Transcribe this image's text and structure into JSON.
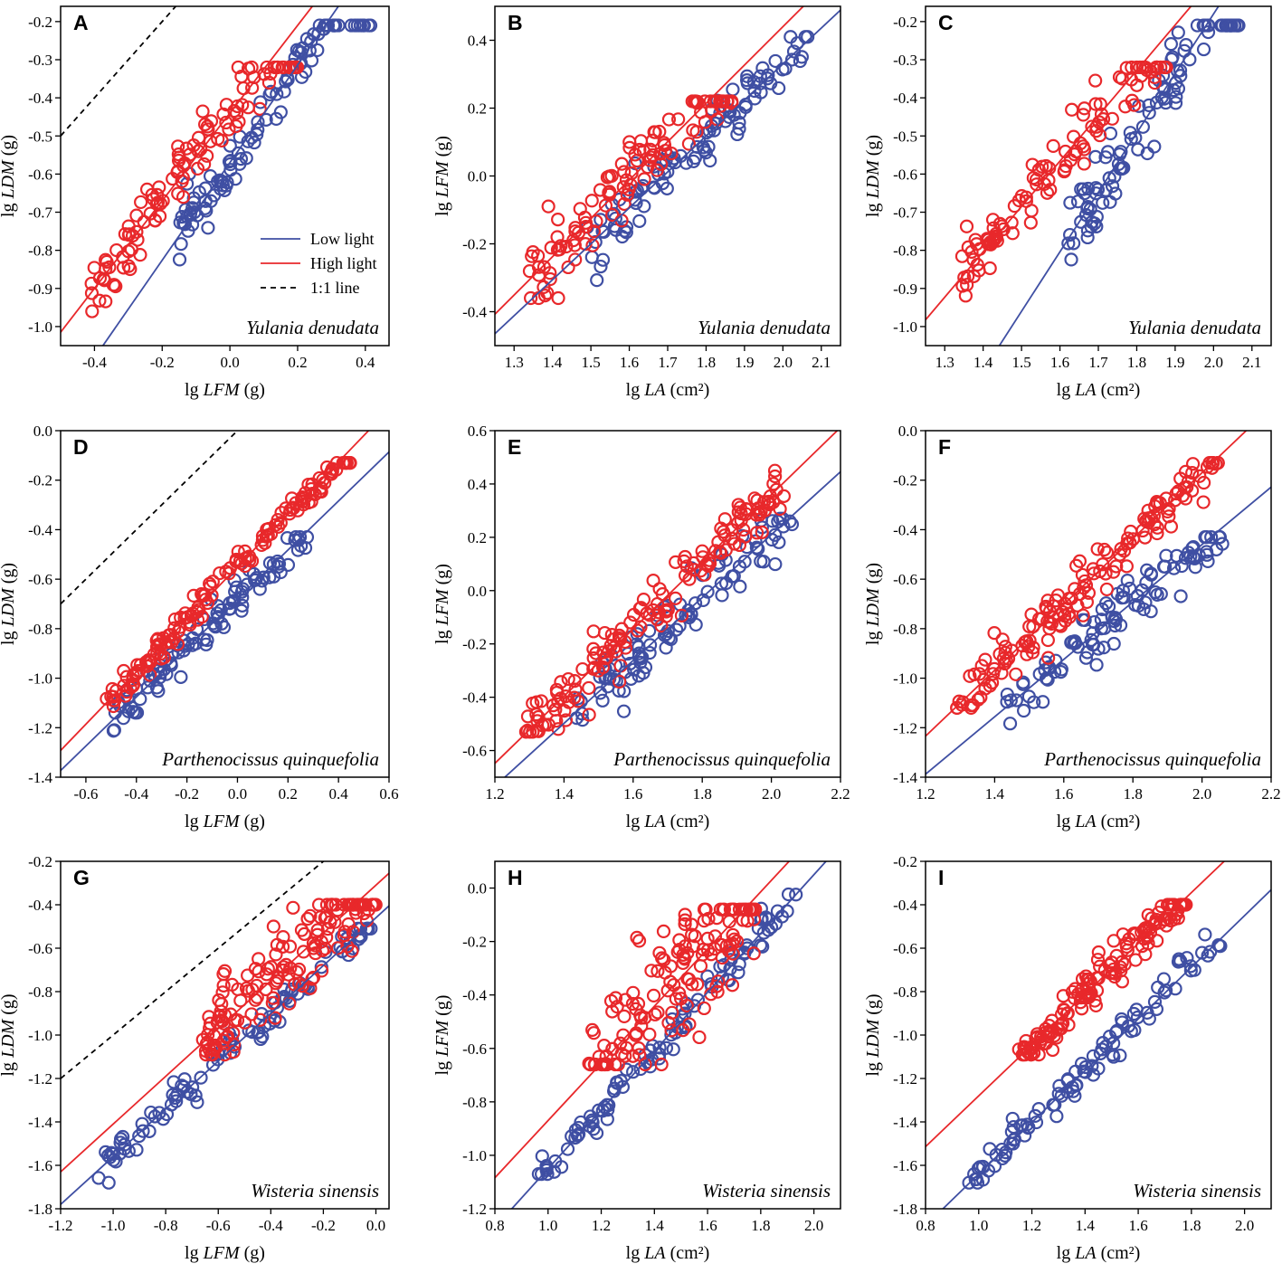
{
  "colors": {
    "low": "#3f4fa3",
    "high": "#e8282b",
    "ref": "#000000",
    "frame": "#000000"
  },
  "legend": {
    "low": "Low light",
    "high": "High light",
    "ref": "1:1 line"
  },
  "chart_data": [
    {
      "id": "A",
      "type": "scatter",
      "species": "Yulania denudata",
      "xlabel_pre": "lg ",
      "xlabel_var": "LFM",
      "xlabel_post": " (g)",
      "ylabel_pre": "lg ",
      "ylabel_var": "LDM",
      "ylabel_post": " (g)",
      "xlim": [
        -0.5,
        0.47
      ],
      "ylim": [
        -1.05,
        -0.16
      ],
      "xticks": [
        -0.4,
        -0.2,
        0.0,
        0.2,
        0.4
      ],
      "yticks": [
        -1.0,
        -0.9,
        -0.8,
        -0.7,
        -0.6,
        -0.5,
        -0.4,
        -0.3,
        -0.2
      ],
      "xdec": 1,
      "ydec": 1,
      "legend_shown": true,
      "ref_line": true,
      "fit": {
        "low": {
          "slope": 1.28,
          "intercept": -0.57
        },
        "high": {
          "slope": 1.15,
          "intercept": -0.44
        }
      },
      "low": {
        "xr": [
          -0.16,
          0.42
        ],
        "yr": [
          -0.86,
          -0.21
        ],
        "n": 100,
        "noise": 0.035,
        "seed": 11
      },
      "high": {
        "xr": [
          -0.41,
          0.2
        ],
        "yr": [
          -0.96,
          -0.32
        ],
        "n": 110,
        "noise": 0.05,
        "seed": 12
      }
    },
    {
      "id": "B",
      "type": "scatter",
      "species": "Yulania denudata",
      "xlabel_pre": "lg ",
      "xlabel_var": "LA",
      "xlabel_post": " (cm²)",
      "ylabel_pre": "lg ",
      "ylabel_var": "LFM",
      "ylabel_post": " (g)",
      "xlim": [
        1.25,
        2.15
      ],
      "ylim": [
        -0.5,
        0.5
      ],
      "xticks": [
        1.3,
        1.4,
        1.5,
        1.6,
        1.7,
        1.8,
        1.9,
        2.0,
        2.1
      ],
      "yticks": [
        -0.4,
        -0.2,
        0.0,
        0.2,
        0.4
      ],
      "xdec": 1,
      "ydec": 1,
      "legend_shown": false,
      "ref_line": false,
      "fit": {
        "low": {
          "slope": 1.06,
          "intercept": -1.79
        },
        "high": {
          "slope": 1.13,
          "intercept": -1.82
        }
      },
      "low": {
        "xr": [
          1.49,
          2.07
        ],
        "yr": [
          -0.41,
          0.41
        ],
        "n": 100,
        "noise": 0.04,
        "seed": 21
      },
      "high": {
        "xr": [
          1.34,
          1.88
        ],
        "yr": [
          -0.36,
          0.22
        ],
        "n": 110,
        "noise": 0.05,
        "seed": 22
      }
    },
    {
      "id": "C",
      "type": "scatter",
      "species": "Yulania denudata",
      "xlabel_pre": "lg ",
      "xlabel_var": "LA",
      "xlabel_post": " (cm²)",
      "ylabel_pre": "lg ",
      "ylabel_var": "LDM",
      "ylabel_post": " (g)",
      "xlim": [
        1.25,
        2.15
      ],
      "ylim": [
        -1.05,
        -0.16
      ],
      "xticks": [
        1.3,
        1.4,
        1.5,
        1.6,
        1.7,
        1.8,
        1.9,
        2.0,
        2.1
      ],
      "yticks": [
        -1.0,
        -0.9,
        -0.8,
        -0.7,
        -0.6,
        -0.5,
        -0.4,
        -0.3,
        -0.2
      ],
      "xdec": 1,
      "ydec": 1,
      "legend_shown": false,
      "ref_line": false,
      "fit": {
        "low": {
          "slope": 1.56,
          "intercept": -3.3
        },
        "high": {
          "slope": 1.19,
          "intercept": -2.47
        }
      },
      "low": {
        "xr": [
          1.62,
          2.07
        ],
        "yr": [
          -0.86,
          -0.21
        ],
        "n": 100,
        "noise": 0.05,
        "seed": 31
      },
      "high": {
        "xr": [
          1.34,
          1.88
        ],
        "yr": [
          -0.96,
          -0.32
        ],
        "n": 110,
        "noise": 0.05,
        "seed": 32
      }
    },
    {
      "id": "D",
      "type": "scatter",
      "species": "Parthenocissus quinquefolia",
      "xlabel_pre": "lg ",
      "xlabel_var": "LFM",
      "xlabel_post": " (g)",
      "ylabel_pre": "lg ",
      "ylabel_var": "LDM",
      "ylabel_post": " (g)",
      "xlim": [
        -0.7,
        0.6
      ],
      "ylim": [
        -1.4,
        0.0
      ],
      "xticks": [
        -0.6,
        -0.4,
        -0.2,
        0.0,
        0.2,
        0.4,
        0.6
      ],
      "yticks": [
        -1.4,
        -1.2,
        -1.0,
        -0.8,
        -0.6,
        -0.4,
        -0.2,
        0.0
      ],
      "xdec": 1,
      "ydec": 1,
      "legend_shown": false,
      "ref_line": true,
      "fit": {
        "low": {
          "slope": 0.99,
          "intercept": -0.68
        },
        "high": {
          "slope": 1.06,
          "intercept": -0.55
        }
      },
      "low": {
        "xr": [
          -0.5,
          0.28
        ],
        "yr": [
          -1.23,
          -0.43
        ],
        "n": 100,
        "noise": 0.04,
        "seed": 41
      },
      "high": {
        "xr": [
          -0.54,
          0.45
        ],
        "yr": [
          -1.12,
          -0.13
        ],
        "n": 150,
        "noise": 0.03,
        "seed": 42
      }
    },
    {
      "id": "E",
      "type": "scatter",
      "species": "Parthenocissus quinquefolia",
      "xlabel_pre": "lg ",
      "xlabel_var": "LA",
      "xlabel_post": " (cm²)",
      "ylabel_pre": "lg ",
      "ylabel_var": "LFM",
      "ylabel_post": " (g)",
      "xlim": [
        1.2,
        2.2
      ],
      "ylim": [
        -0.7,
        0.6
      ],
      "xticks": [
        1.2,
        1.4,
        1.6,
        1.8,
        2.0,
        2.2
      ],
      "yticks": [
        -0.6,
        -0.4,
        -0.2,
        0.0,
        0.2,
        0.4,
        0.6
      ],
      "xdec": 1,
      "ydec": 1,
      "legend_shown": false,
      "ref_line": false,
      "fit": {
        "low": {
          "slope": 1.18,
          "intercept": -2.15
        },
        "high": {
          "slope": 1.26,
          "intercept": -2.16
        }
      },
      "low": {
        "xr": [
          1.43,
          2.06
        ],
        "yr": [
          -0.49,
          0.27
        ],
        "n": 100,
        "noise": 0.05,
        "seed": 51
      },
      "high": {
        "xr": [
          1.29,
          2.05
        ],
        "yr": [
          -0.53,
          0.45
        ],
        "n": 150,
        "noise": 0.05,
        "seed": 52
      }
    },
    {
      "id": "F",
      "type": "scatter",
      "species": "Parthenocissus quinquefolia",
      "xlabel_pre": "lg ",
      "xlabel_var": "LA",
      "xlabel_post": " (cm²)",
      "ylabel_pre": "lg ",
      "ylabel_var": "LDM",
      "ylabel_post": " (g)",
      "xlim": [
        1.2,
        2.2
      ],
      "ylim": [
        -1.4,
        0.0
      ],
      "xticks": [
        1.2,
        1.4,
        1.6,
        1.8,
        2.0,
        2.2
      ],
      "yticks": [
        -1.4,
        -1.2,
        -1.0,
        -0.8,
        -0.6,
        -0.4,
        -0.2,
        0.0
      ],
      "xdec": 1,
      "ydec": 1,
      "legend_shown": false,
      "ref_line": false,
      "fit": {
        "low": {
          "slope": 1.16,
          "intercept": -2.78
        },
        "high": {
          "slope": 1.33,
          "intercept": -2.83
        }
      },
      "low": {
        "xr": [
          1.43,
          2.06
        ],
        "yr": [
          -1.23,
          -0.43
        ],
        "n": 100,
        "noise": 0.06,
        "seed": 61
      },
      "high": {
        "xr": [
          1.29,
          2.05
        ],
        "yr": [
          -1.12,
          -0.13
        ],
        "n": 150,
        "noise": 0.05,
        "seed": 62
      }
    },
    {
      "id": "G",
      "type": "scatter",
      "species": "Wisteria sinensis",
      "xlabel_pre": "lg ",
      "xlabel_var": "LFM",
      "xlabel_post": " (g)",
      "ylabel_pre": "lg ",
      "ylabel_var": "LDM",
      "ylabel_post": " (g)",
      "xlim": [
        -1.2,
        0.05
      ],
      "ylim": [
        -1.8,
        -0.2
      ],
      "xticks": [
        -1.2,
        -1.0,
        -0.8,
        -0.6,
        -0.4,
        -0.2,
        0.0
      ],
      "yticks": [
        -1.8,
        -1.6,
        -1.4,
        -1.2,
        -1.0,
        -0.8,
        -0.6,
        -0.4,
        -0.2
      ],
      "xdec": 1,
      "ydec": 1,
      "legend_shown": false,
      "ref_line": true,
      "fit": {
        "low": {
          "slope": 1.1,
          "intercept": -0.46
        },
        "high": {
          "slope": 1.1,
          "intercept": -0.31
        }
      },
      "low": {
        "xr": [
          -1.08,
          0.0
        ],
        "yr": [
          -1.68,
          -0.51
        ],
        "n": 100,
        "noise": 0.04,
        "seed": 71
      },
      "high": {
        "xr": [
          -0.66,
          0.0
        ],
        "yr": [
          -1.09,
          -0.4
        ],
        "n": 150,
        "noise": 0.1,
        "seed": 72
      }
    },
    {
      "id": "H",
      "type": "scatter",
      "species": "Wisteria sinensis",
      "xlabel_pre": "lg ",
      "xlabel_var": "LA",
      "xlabel_post": " (cm²)",
      "ylabel_pre": "lg ",
      "ylabel_var": "LFM",
      "ylabel_post": " (g)",
      "xlim": [
        0.8,
        2.1
      ],
      "ylim": [
        -1.2,
        0.1
      ],
      "xticks": [
        0.8,
        1.0,
        1.2,
        1.4,
        1.6,
        1.8,
        2.0
      ],
      "yticks": [
        -1.2,
        -1.0,
        -0.8,
        -0.6,
        -0.4,
        -0.2,
        0.0
      ],
      "xdec": 1,
      "ydec": 1,
      "legend_shown": false,
      "ref_line": false,
      "fit": {
        "low": {
          "slope": 1.1,
          "intercept": -2.15
        },
        "high": {
          "slope": 1.07,
          "intercept": -1.94
        }
      },
      "low": {
        "xr": [
          0.96,
          1.94
        ],
        "yr": [
          -1.07,
          0.0
        ],
        "n": 100,
        "noise": 0.03,
        "seed": 81
      },
      "high": {
        "xr": [
          1.15,
          1.78
        ],
        "yr": [
          -0.66,
          -0.08
        ],
        "n": 150,
        "noise": 0.12,
        "seed": 82
      }
    },
    {
      "id": "I",
      "type": "scatter",
      "species": "Wisteria sinensis",
      "xlabel_pre": "lg ",
      "xlabel_var": "LA",
      "xlabel_post": " (cm²)",
      "ylabel_pre": "lg ",
      "ylabel_var": "LDM",
      "ylabel_post": " (g)",
      "xlim": [
        0.8,
        2.1
      ],
      "ylim": [
        -1.8,
        -0.2
      ],
      "xticks": [
        0.8,
        1.0,
        1.2,
        1.4,
        1.6,
        1.8,
        2.0
      ],
      "yticks": [
        -1.8,
        -1.6,
        -1.4,
        -1.2,
        -1.0,
        -0.8,
        -0.6,
        -0.4,
        -0.2
      ],
      "xdec": 1,
      "ydec": 1,
      "legend_shown": false,
      "ref_line": false,
      "fit": {
        "low": {
          "slope": 1.19,
          "intercept": -2.83
        },
        "high": {
          "slope": 1.17,
          "intercept": -2.45
        }
      },
      "low": {
        "xr": [
          0.96,
          1.94
        ],
        "yr": [
          -1.68,
          -0.51
        ],
        "n": 100,
        "noise": 0.04,
        "seed": 91
      },
      "high": {
        "xr": [
          1.15,
          1.78
        ],
        "yr": [
          -1.09,
          -0.4
        ],
        "n": 150,
        "noise": 0.05,
        "seed": 92
      }
    }
  ]
}
